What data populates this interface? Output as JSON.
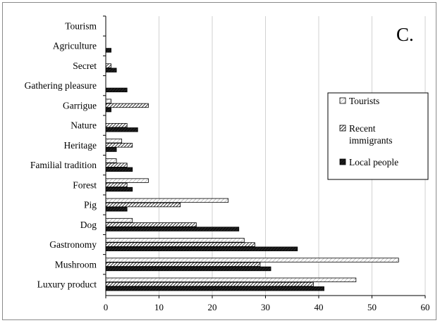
{
  "chart_data": {
    "type": "bar",
    "orientation": "horizontal",
    "panel_label": "C.",
    "categories": [
      "Tourism",
      "Agriculture",
      "Secret",
      "Gathering pleasure",
      "Garrigue",
      "Nature",
      "Heritage",
      "Familial tradition",
      "Forest",
      "Pig",
      "Dog",
      "Gastronomy",
      "Mushroom",
      "Luxury product"
    ],
    "series": [
      {
        "name": "Tourists",
        "values": [
          0,
          0,
          0,
          0,
          1,
          0,
          3,
          2,
          8,
          23,
          5,
          26,
          55,
          47
        ]
      },
      {
        "name": "Recent immigrants",
        "values": [
          0,
          0,
          1,
          0,
          8,
          4,
          5,
          4,
          4,
          14,
          17,
          28,
          29,
          39
        ]
      },
      {
        "name": "Local people",
        "values": [
          0,
          1,
          2,
          4,
          1,
          6,
          2,
          5,
          5,
          4,
          25,
          36,
          31,
          41
        ]
      }
    ],
    "series_legend_lines": [
      [
        "Tourists"
      ],
      [
        "Recent",
        "immigrants"
      ],
      [
        "Local people"
      ]
    ],
    "xlim": [
      0,
      60
    ],
    "xticks": [
      "0",
      "10",
      "20",
      "30",
      "40",
      "50",
      "60"
    ],
    "grid": "vertical",
    "legend_position": "right",
    "series_colors": [
      "#ececec",
      "#5a5a5a",
      "#151515"
    ]
  }
}
